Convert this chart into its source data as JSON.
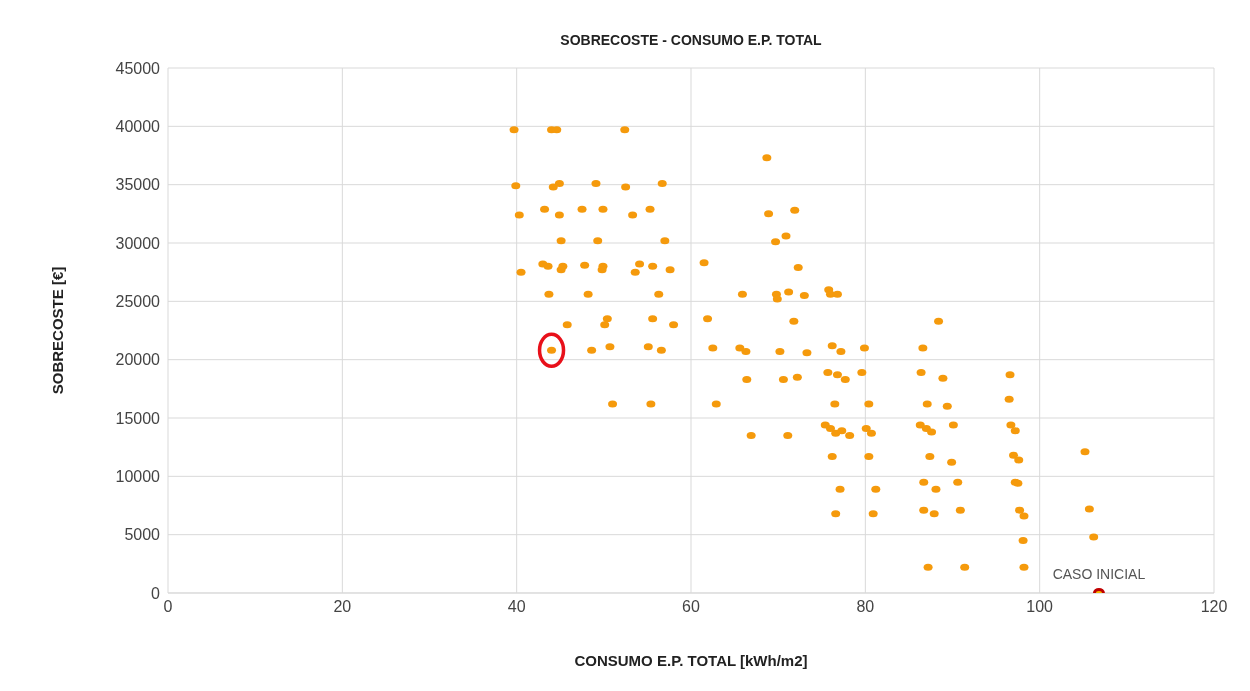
{
  "chart_data": {
    "type": "scatter",
    "title": "SOBRECOSTE -  CONSUMO E.P. TOTAL",
    "xlabel": "CONSUMO E.P. TOTAL [kWh/m2]",
    "ylabel": "SOBRECOSTE [€]",
    "xlim": [
      0,
      120
    ],
    "xticks": [
      0,
      20,
      40,
      60,
      80,
      100,
      120
    ],
    "ylim": [
      0,
      45000
    ],
    "yticks": [
      0,
      5000,
      10000,
      15000,
      20000,
      25000,
      30000,
      35000,
      40000,
      45000
    ],
    "grid": true,
    "marker": "circle",
    "legend": false,
    "series": [
      {
        "color": "#f59a0c",
        "x": [
          39.7,
          44,
          44.6,
          52.4,
          39.9,
          44.2,
          44.9,
          49.1,
          52.5,
          56.7,
          40.3,
          43.2,
          44.9,
          47.5,
          49.9,
          53.3,
          55.3,
          45.1,
          49.3,
          57.0,
          40.5,
          43,
          43.6,
          45.1,
          45.3,
          47.8,
          49.9,
          49.8,
          53.6,
          54.1,
          55.6,
          57.6,
          43.7,
          48.2,
          56.3,
          45.8,
          50.4,
          50.1,
          55.6,
          58.0,
          48.6,
          50.7,
          55.1,
          56.6,
          51.0,
          55.4,
          68.7,
          68.9,
          71.9,
          70.9,
          69.7,
          61.5,
          72.3,
          65.9,
          69.8,
          69.9,
          71.2,
          73.0,
          75.8,
          76.0,
          76.8,
          61.9,
          71.8,
          62.5,
          65.6,
          66.3,
          70.2,
          73.3,
          76.2,
          77.2,
          79.9,
          66.4,
          70.6,
          72.2,
          75.7,
          76.8,
          77.7,
          79.6,
          62.9,
          76.5,
          80.4,
          66.9,
          71.1,
          75.4,
          76.0,
          76.6,
          77.3,
          78.2,
          80.1,
          80.7,
          76.2,
          80.4,
          77.1,
          81.2,
          76.6,
          80.9,
          88.4,
          86.6,
          86.4,
          88.9,
          96.6,
          87.1,
          89.4,
          96.5,
          86.3,
          87.0,
          87.6,
          90.1,
          96.7,
          97.2,
          87.4,
          89.9,
          97.0,
          97.6,
          86.7,
          88.1,
          90.6,
          97.2,
          97.5,
          86.7,
          87.9,
          90.9,
          97.7,
          98.2,
          98.1,
          87.2,
          91.4,
          98.2,
          105.2,
          105.7,
          106.2
        ],
        "values": [
          39700,
          39700,
          39700,
          39700,
          34900,
          34800,
          35100,
          35100,
          34800,
          35100,
          32400,
          32900,
          32400,
          32900,
          32900,
          32400,
          32900,
          30200,
          30200,
          30200,
          27500,
          28200,
          28000,
          27700,
          28000,
          28100,
          28000,
          27700,
          27500,
          28200,
          28000,
          27700,
          25600,
          25600,
          25600,
          23000,
          23500,
          23000,
          23500,
          23000,
          20800,
          21100,
          21100,
          20800,
          16200,
          16200,
          37300,
          32500,
          32800,
          30600,
          30100,
          28300,
          27900,
          25600,
          25600,
          25200,
          25800,
          25500,
          26000,
          25600,
          25600,
          23500,
          23300,
          21000,
          21000,
          20700,
          20700,
          20600,
          21200,
          20700,
          21000,
          18300,
          18300,
          18500,
          18900,
          18700,
          18300,
          18900,
          16200,
          16200,
          16200,
          13500,
          13500,
          14400,
          14100,
          13700,
          13900,
          13500,
          14100,
          13700,
          11700,
          11700,
          8900,
          8900,
          6800,
          6800,
          23300,
          21000,
          18900,
          18400,
          18700,
          16200,
          16000,
          16600,
          14400,
          14100,
          13800,
          14400,
          14400,
          13900,
          11700,
          11200,
          11800,
          11400,
          9500,
          8900,
          9500,
          9500,
          9400,
          7100,
          6800,
          7100,
          7100,
          6600,
          4500,
          2200,
          2200,
          2200,
          12100,
          7200,
          4800
        ]
      },
      {
        "color": "#f59a0c",
        "x": [
          44.0
        ],
        "values": [
          20800
        ]
      },
      {
        "color": "#c00000",
        "x": [
          106.8
        ],
        "values": [
          0
        ]
      }
    ],
    "annotations": [
      {
        "text": "CASO INICIAL",
        "x": 106.8,
        "y": 0
      }
    ]
  }
}
